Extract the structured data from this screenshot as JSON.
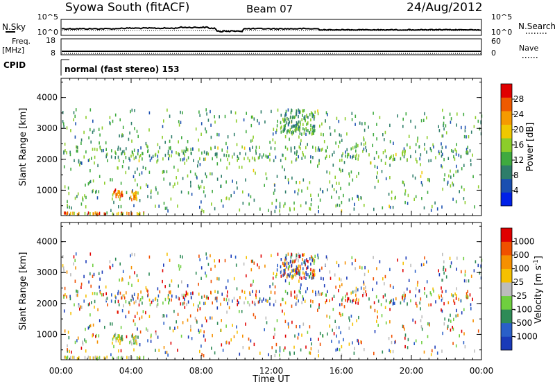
{
  "header": {
    "station": "Syowa South (fitACF)",
    "beam": "Beam 07",
    "date": "24/Aug/2012"
  },
  "noise_panel": {
    "left_label": "N.Sky",
    "right_label": "N.Search",
    "left_ticks": [
      "10^5",
      "10^0"
    ],
    "right_ticks": [
      "10^5",
      "10^0"
    ]
  },
  "freq_panel": {
    "left_label_1": "Freq.",
    "left_label_2": "[MHz]",
    "right_label": "Nave",
    "left_ticks": [
      "18",
      "8"
    ],
    "right_ticks": [
      "60",
      "0"
    ]
  },
  "cpid_panel": {
    "label": "CPID",
    "text": "normal (fast stereo) 153"
  },
  "chart_data": [
    {
      "type": "heatmap",
      "name": "power",
      "xlabel": "",
      "ylabel": "Slant Range [km]",
      "x_ticks": [
        "00:00",
        "04:00",
        "08:00",
        "12:00",
        "16:00",
        "20:00",
        "00:00"
      ],
      "xlim_hours": [
        0,
        24
      ],
      "y_ticks": [
        1000,
        2000,
        3000,
        4000
      ],
      "ylim": [
        180,
        4620
      ],
      "colorbar": {
        "label": "Power [dB]",
        "range": [
          0,
          32
        ],
        "tick_values": [
          4,
          8,
          12,
          16,
          20,
          24,
          28
        ],
        "colors": [
          "#0020e8",
          "#1a4fb0",
          "#2e7d6a",
          "#3faa3f",
          "#8ccd2a",
          "#f0c800",
          "#f59a00",
          "#ee5a00",
          "#e00000"
        ]
      },
      "clusters": [
        {
          "hours": [
            2.9,
            3.5
          ],
          "km": [
            780,
            1000
          ],
          "value_range": [
            20,
            30
          ]
        },
        {
          "hours": [
            3.9,
            4.4
          ],
          "km": [
            680,
            950
          ],
          "value_range": [
            16,
            28
          ]
        }
      ]
    },
    {
      "type": "heatmap",
      "name": "velocity",
      "xlabel": "Time UT",
      "ylabel": "Slant Range [km]",
      "x_ticks": [
        "00:00",
        "04:00",
        "08:00",
        "12:00",
        "16:00",
        "20:00",
        "00:00"
      ],
      "xlim_hours": [
        0,
        24
      ],
      "y_ticks": [
        1000,
        2000,
        3000,
        4000
      ],
      "ylim": [
        180,
        4620
      ],
      "colorbar": {
        "label": "Velocity [m s",
        "label_sup": "-1",
        "label_end": "]",
        "tick_labels": [
          "1000",
          "500",
          "100",
          "25",
          "-25",
          "-100",
          "-500",
          "-1000"
        ],
        "colors": [
          "#1a3ab8",
          "#2a5fc8",
          "#2e8b57",
          "#6fcf3f",
          "#bcbcbc",
          "#f5c000",
          "#f59000",
          "#f05000",
          "#e00000"
        ]
      }
    }
  ]
}
